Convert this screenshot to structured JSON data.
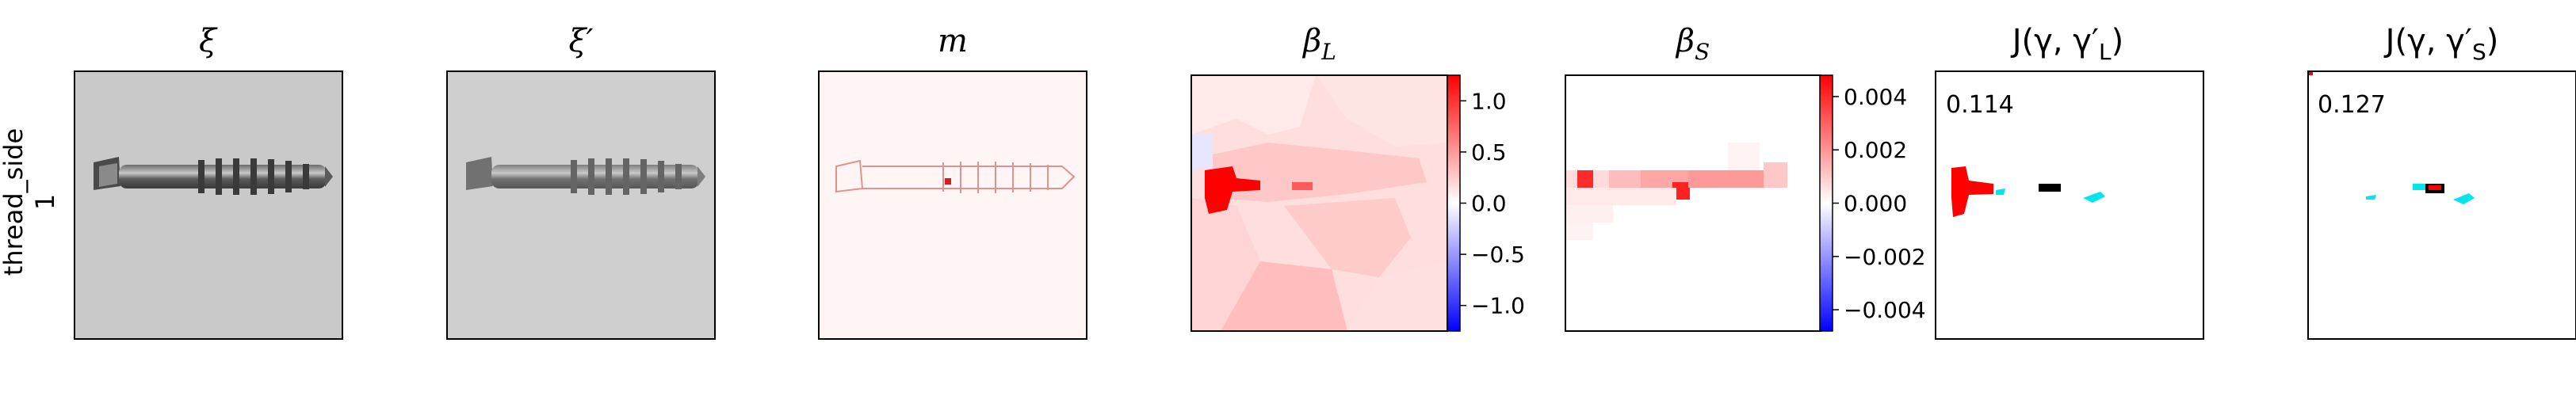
{
  "figure": {
    "row_label_line1": "thread_side",
    "row_label_line2": "1",
    "panels": [
      {
        "id": "xi",
        "title": "ξ",
        "kind": "image"
      },
      {
        "id": "xi_prime",
        "title": "ξ′",
        "kind": "image"
      },
      {
        "id": "m",
        "title": "m",
        "kind": "mask"
      },
      {
        "id": "beta_L",
        "title": "βL",
        "title_main": "β",
        "title_sub": "L",
        "kind": "heatmap"
      },
      {
        "id": "beta_S",
        "title": "βS",
        "title_main": "β",
        "title_sub": "S",
        "kind": "heatmap"
      },
      {
        "id": "J_L",
        "title": "J(γ, γ′L)",
        "title_pre": "J(γ, γ′",
        "title_sub": "L",
        "title_post": ")",
        "kind": "overlap",
        "score": "0.114"
      },
      {
        "id": "J_S",
        "title": "J(γ, γ′S)",
        "title_pre": "J(γ, γ′",
        "title_sub": "S",
        "title_post": ")",
        "kind": "overlap",
        "score": "0.127"
      }
    ],
    "colors": {
      "positive": "#ff0000",
      "negative": "#0000ff",
      "neutral": "#ffffff",
      "overlap_true": "#000000",
      "overlap_gt": "#00e5ee",
      "overlap_pred": "#ff0000"
    }
  },
  "chart_data": [
    {
      "type": "heatmap",
      "panel": "βL",
      "colorbar": {
        "ticks": [
          "1.0",
          "0.5",
          "0.0",
          "−0.5",
          "−1.0"
        ],
        "tick_values": [
          1.0,
          0.5,
          0.0,
          -0.5,
          -1.0
        ],
        "range": [
          -1.25,
          1.25
        ],
        "colormap": "bwr"
      }
    },
    {
      "type": "heatmap",
      "panel": "βS",
      "colorbar": {
        "ticks": [
          "0.004",
          "0.002",
          "0.000",
          "−0.002",
          "−0.004"
        ],
        "tick_values": [
          0.004,
          0.002,
          0.0,
          -0.002,
          -0.004
        ],
        "range": [
          -0.0048,
          0.0048
        ],
        "colormap": "bwr"
      }
    }
  ]
}
